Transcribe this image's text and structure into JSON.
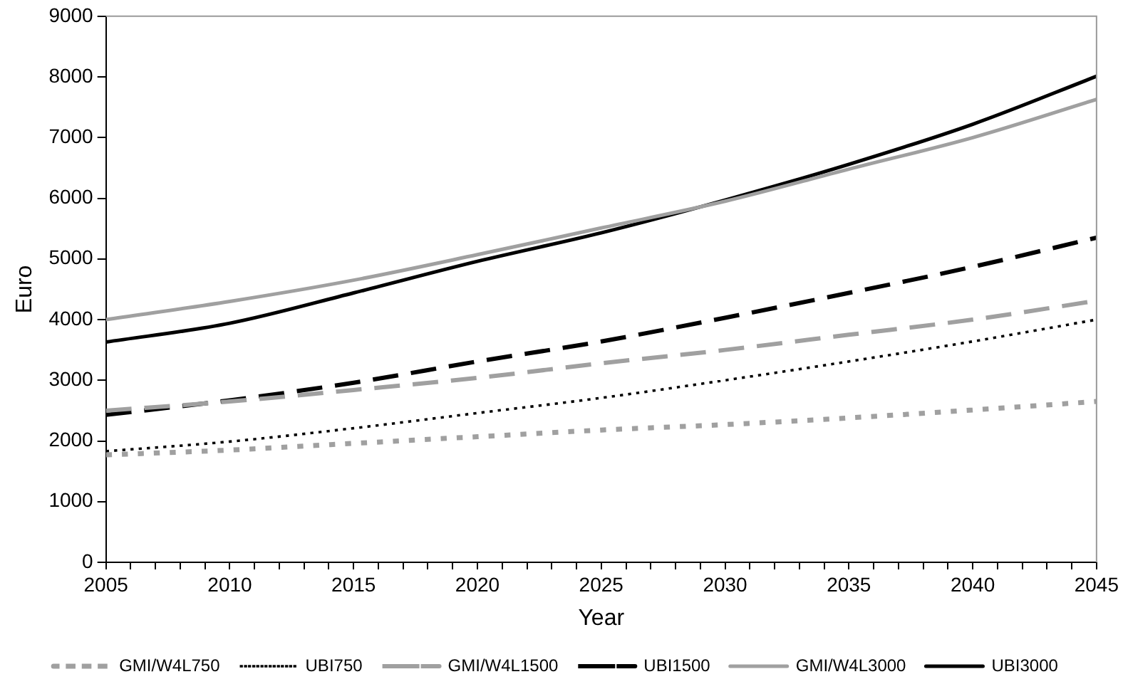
{
  "chart_data": {
    "type": "line",
    "xlabel": "Year",
    "ylabel": "Euro",
    "x": [
      2005,
      2010,
      2015,
      2020,
      2025,
      2030,
      2035,
      2040,
      2045
    ],
    "xlim": [
      2005,
      2045
    ],
    "xticks": [
      2005,
      {
        "value": 2006,
        "label": null
      },
      {
        "value": 2007,
        "label": null
      },
      {
        "value": 2008,
        "label": null
      },
      {
        "value": 2009,
        "label": null
      },
      2010,
      {
        "value": 2011,
        "label": null
      },
      {
        "value": 2012,
        "label": null
      },
      {
        "value": 2013,
        "label": null
      },
      {
        "value": 2014,
        "label": null
      },
      2015,
      {
        "value": 2016,
        "label": null
      },
      {
        "value": 2017,
        "label": null
      },
      {
        "value": 2018,
        "label": null
      },
      {
        "value": 2019,
        "label": null
      },
      2020,
      {
        "value": 2021,
        "label": null
      },
      {
        "value": 2022,
        "label": null
      },
      {
        "value": 2023,
        "label": null
      },
      {
        "value": 2024,
        "label": null
      },
      2025,
      {
        "value": 2026,
        "label": null
      },
      {
        "value": 2027,
        "label": null
      },
      {
        "value": 2028,
        "label": null
      },
      {
        "value": 2029,
        "label": null
      },
      2030,
      {
        "value": 2031,
        "label": null
      },
      {
        "value": 2032,
        "label": null
      },
      {
        "value": 2033,
        "label": null
      },
      {
        "value": 2034,
        "label": null
      },
      2035,
      {
        "value": 2036,
        "label": null
      },
      {
        "value": 2037,
        "label": null
      },
      {
        "value": 2038,
        "label": null
      },
      {
        "value": 2039,
        "label": null
      },
      2040,
      {
        "value": 2041,
        "label": null
      },
      {
        "value": 2042,
        "label": null
      },
      {
        "value": 2043,
        "label": null
      },
      {
        "value": 2044,
        "label": null
      },
      2045
    ],
    "ylim": [
      0,
      9000
    ],
    "yticks": [
      0,
      1000,
      2000,
      3000,
      4000,
      5000,
      6000,
      7000,
      8000,
      9000
    ],
    "grid": false,
    "legend": "bottom",
    "marker": "none",
    "series": [
      {
        "name": "GMI/W4L750",
        "color": "#a0a0a0",
        "line_style": "dotted",
        "values": [
          1770,
          1850,
          1960,
          2070,
          2180,
          2270,
          2380,
          2510,
          2650
        ]
      },
      {
        "name": "UBI750",
        "color": "#000000",
        "line_style": "dotted",
        "values": [
          1830,
          1990,
          2210,
          2460,
          2710,
          3000,
          3310,
          3640,
          4000
        ]
      },
      {
        "name": "GMI/W4L1500",
        "color": "#a0a0a0",
        "line_style": "dashed",
        "values": [
          2500,
          2650,
          2840,
          3040,
          3280,
          3500,
          3750,
          4000,
          4310
        ]
      },
      {
        "name": "UBI1500",
        "color": "#000000",
        "line_style": "dashed",
        "values": [
          2430,
          2670,
          2960,
          3310,
          3640,
          4030,
          4440,
          4870,
          5350
        ]
      },
      {
        "name": "GMI/W4L3000",
        "color": "#a0a0a0",
        "line_style": "solid",
        "values": [
          4000,
          4300,
          4650,
          5070,
          5510,
          5950,
          6480,
          7000,
          7630
        ]
      },
      {
        "name": "UBI3000",
        "color": "#000000",
        "line_style": "solid",
        "values": [
          3630,
          3940,
          4440,
          4960,
          5430,
          5970,
          6560,
          7220,
          8010
        ]
      }
    ]
  }
}
